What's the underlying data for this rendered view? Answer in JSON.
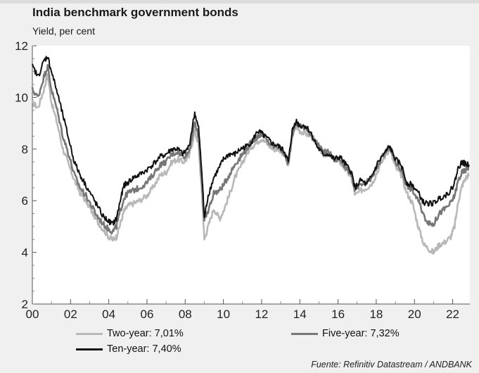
{
  "title": "India benchmark government bonds",
  "subtitle": "Yield, per cent",
  "source": "Fuente: Refinitiv Datastream / ANDBANK",
  "legend": {
    "two": "Two-year: 7,01%",
    "five": "Five-year: 7,32%",
    "ten": "Ten-year: 7,40%"
  },
  "chart_data": {
    "type": "line",
    "title": "India benchmark government bonds",
    "ylabel": "Yield, per cent",
    "xlabel": "",
    "xlim": [
      2000,
      2022.9
    ],
    "ylim": [
      2,
      12
    ],
    "yticks": [
      2,
      4,
      6,
      8,
      10,
      12
    ],
    "xticks": [
      "00",
      "02",
      "04",
      "06",
      "08",
      "10",
      "12",
      "14",
      "16",
      "18",
      "20",
      "22"
    ],
    "grid": false,
    "legend_position": "bottom",
    "series": [
      {
        "name": "Two-year: 7,01%",
        "color": "#b8b8b8",
        "points": [
          [
            2000.0,
            9.8
          ],
          [
            2000.3,
            9.6
          ],
          [
            2000.6,
            10.3
          ],
          [
            2000.8,
            10.9
          ],
          [
            2001.0,
            9.8
          ],
          [
            2001.3,
            9.0
          ],
          [
            2001.6,
            8.0
          ],
          [
            2001.9,
            7.4
          ],
          [
            2002.2,
            6.8
          ],
          [
            2002.5,
            6.3
          ],
          [
            2002.8,
            6.0
          ],
          [
            2003.1,
            5.6
          ],
          [
            2003.4,
            5.2
          ],
          [
            2003.7,
            4.9
          ],
          [
            2004.0,
            4.6
          ],
          [
            2004.2,
            4.5
          ],
          [
            2004.4,
            4.6
          ],
          [
            2004.6,
            5.1
          ],
          [
            2004.8,
            5.6
          ],
          [
            2005.0,
            5.8
          ],
          [
            2005.3,
            5.9
          ],
          [
            2005.6,
            6.0
          ],
          [
            2006.0,
            6.2
          ],
          [
            2006.3,
            6.5
          ],
          [
            2006.7,
            7.0
          ],
          [
            2007.0,
            7.1
          ],
          [
            2007.3,
            7.5
          ],
          [
            2007.6,
            7.6
          ],
          [
            2007.9,
            7.5
          ],
          [
            2008.2,
            7.7
          ],
          [
            2008.5,
            8.7
          ],
          [
            2008.7,
            8.2
          ],
          [
            2008.9,
            6.0
          ],
          [
            2009.0,
            4.5
          ],
          [
            2009.2,
            5.0
          ],
          [
            2009.5,
            5.7
          ],
          [
            2009.8,
            5.3
          ],
          [
            2010.0,
            5.6
          ],
          [
            2010.3,
            6.2
          ],
          [
            2010.6,
            6.9
          ],
          [
            2010.9,
            7.3
          ],
          [
            2011.2,
            7.8
          ],
          [
            2011.5,
            8.1
          ],
          [
            2011.8,
            8.3
          ],
          [
            2012.0,
            8.4
          ],
          [
            2012.3,
            8.2
          ],
          [
            2012.6,
            8.0
          ],
          [
            2012.9,
            8.0
          ],
          [
            2013.2,
            7.8
          ],
          [
            2013.4,
            7.3
          ],
          [
            2013.6,
            8.5
          ],
          [
            2013.8,
            8.9
          ],
          [
            2014.0,
            8.7
          ],
          [
            2014.3,
            8.6
          ],
          [
            2014.6,
            8.5
          ],
          [
            2014.9,
            8.2
          ],
          [
            2015.2,
            7.8
          ],
          [
            2015.5,
            7.8
          ],
          [
            2015.8,
            7.6
          ],
          [
            2016.1,
            7.5
          ],
          [
            2016.4,
            7.2
          ],
          [
            2016.7,
            6.9
          ],
          [
            2016.9,
            6.2
          ],
          [
            2017.2,
            6.4
          ],
          [
            2017.5,
            6.5
          ],
          [
            2017.8,
            6.7
          ],
          [
            2018.1,
            7.2
          ],
          [
            2018.5,
            7.8
          ],
          [
            2018.7,
            8.0
          ],
          [
            2019.0,
            7.3
          ],
          [
            2019.3,
            7.0
          ],
          [
            2019.6,
            6.3
          ],
          [
            2019.9,
            5.9
          ],
          [
            2020.2,
            5.0
          ],
          [
            2020.5,
            4.3
          ],
          [
            2020.8,
            4.1
          ],
          [
            2021.0,
            4.0
          ],
          [
            2021.3,
            4.3
          ],
          [
            2021.6,
            4.4
          ],
          [
            2021.9,
            4.6
          ],
          [
            2022.1,
            5.0
          ],
          [
            2022.3,
            6.0
          ],
          [
            2022.5,
            6.6
          ],
          [
            2022.7,
            6.9
          ],
          [
            2022.85,
            7.01
          ]
        ]
      },
      {
        "name": "Five-year: 7,32%",
        "color": "#777777",
        "points": [
          [
            2000.0,
            10.3
          ],
          [
            2000.3,
            10.0
          ],
          [
            2000.6,
            10.8
          ],
          [
            2000.8,
            11.2
          ],
          [
            2001.0,
            10.3
          ],
          [
            2001.3,
            9.5
          ],
          [
            2001.6,
            8.5
          ],
          [
            2001.9,
            7.8
          ],
          [
            2002.2,
            7.0
          ],
          [
            2002.5,
            6.5
          ],
          [
            2002.8,
            6.2
          ],
          [
            2003.1,
            5.8
          ],
          [
            2003.4,
            5.4
          ],
          [
            2003.7,
            5.1
          ],
          [
            2004.0,
            4.9
          ],
          [
            2004.2,
            4.8
          ],
          [
            2004.4,
            5.0
          ],
          [
            2004.6,
            5.6
          ],
          [
            2004.8,
            6.1
          ],
          [
            2005.0,
            6.3
          ],
          [
            2005.3,
            6.4
          ],
          [
            2005.6,
            6.5
          ],
          [
            2006.0,
            6.7
          ],
          [
            2006.3,
            7.0
          ],
          [
            2006.7,
            7.4
          ],
          [
            2007.0,
            7.5
          ],
          [
            2007.3,
            7.8
          ],
          [
            2007.6,
            7.9
          ],
          [
            2007.9,
            7.7
          ],
          [
            2008.2,
            7.9
          ],
          [
            2008.5,
            9.0
          ],
          [
            2008.7,
            8.5
          ],
          [
            2008.9,
            6.4
          ],
          [
            2009.0,
            5.2
          ],
          [
            2009.2,
            5.6
          ],
          [
            2009.5,
            6.3
          ],
          [
            2009.8,
            6.4
          ],
          [
            2010.0,
            6.6
          ],
          [
            2010.3,
            7.0
          ],
          [
            2010.6,
            7.4
          ],
          [
            2010.9,
            7.7
          ],
          [
            2011.2,
            8.0
          ],
          [
            2011.5,
            8.3
          ],
          [
            2011.8,
            8.5
          ],
          [
            2012.0,
            8.6
          ],
          [
            2012.3,
            8.3
          ],
          [
            2012.6,
            8.1
          ],
          [
            2012.9,
            8.1
          ],
          [
            2013.2,
            7.8
          ],
          [
            2013.4,
            7.4
          ],
          [
            2013.6,
            8.6
          ],
          [
            2013.8,
            9.0
          ],
          [
            2014.0,
            8.9
          ],
          [
            2014.3,
            8.8
          ],
          [
            2014.6,
            8.6
          ],
          [
            2014.9,
            8.2
          ],
          [
            2015.2,
            7.9
          ],
          [
            2015.5,
            7.9
          ],
          [
            2015.8,
            7.6
          ],
          [
            2016.1,
            7.6
          ],
          [
            2016.4,
            7.3
          ],
          [
            2016.7,
            7.0
          ],
          [
            2016.9,
            6.4
          ],
          [
            2017.2,
            6.6
          ],
          [
            2017.5,
            6.7
          ],
          [
            2017.8,
            6.9
          ],
          [
            2018.1,
            7.4
          ],
          [
            2018.5,
            7.9
          ],
          [
            2018.7,
            8.1
          ],
          [
            2019.0,
            7.5
          ],
          [
            2019.3,
            7.2
          ],
          [
            2019.6,
            6.6
          ],
          [
            2019.9,
            6.4
          ],
          [
            2020.2,
            6.0
          ],
          [
            2020.5,
            5.4
          ],
          [
            2020.8,
            5.1
          ],
          [
            2021.0,
            5.1
          ],
          [
            2021.3,
            5.5
          ],
          [
            2021.6,
            5.7
          ],
          [
            2021.9,
            5.9
          ],
          [
            2022.1,
            6.2
          ],
          [
            2022.3,
            6.8
          ],
          [
            2022.5,
            7.1
          ],
          [
            2022.7,
            7.2
          ],
          [
            2022.85,
            7.32
          ]
        ]
      },
      {
        "name": "Ten-year: 7,40%",
        "color": "#111111",
        "points": [
          [
            2000.0,
            11.2
          ],
          [
            2000.3,
            10.8
          ],
          [
            2000.6,
            11.4
          ],
          [
            2000.8,
            11.6
          ],
          [
            2001.0,
            11.0
          ],
          [
            2001.3,
            10.2
          ],
          [
            2001.6,
            9.3
          ],
          [
            2001.9,
            8.4
          ],
          [
            2002.2,
            7.5
          ],
          [
            2002.5,
            7.0
          ],
          [
            2002.8,
            6.6
          ],
          [
            2003.1,
            6.2
          ],
          [
            2003.4,
            5.8
          ],
          [
            2003.7,
            5.4
          ],
          [
            2004.0,
            5.2
          ],
          [
            2004.2,
            5.1
          ],
          [
            2004.4,
            5.3
          ],
          [
            2004.6,
            6.0
          ],
          [
            2004.8,
            6.6
          ],
          [
            2005.0,
            6.7
          ],
          [
            2005.3,
            6.9
          ],
          [
            2005.6,
            7.0
          ],
          [
            2006.0,
            7.2
          ],
          [
            2006.3,
            7.4
          ],
          [
            2006.7,
            7.7
          ],
          [
            2007.0,
            7.8
          ],
          [
            2007.3,
            8.0
          ],
          [
            2007.6,
            8.0
          ],
          [
            2007.9,
            7.8
          ],
          [
            2008.2,
            8.1
          ],
          [
            2008.5,
            9.4
          ],
          [
            2008.7,
            8.8
          ],
          [
            2008.9,
            6.8
          ],
          [
            2009.0,
            5.3
          ],
          [
            2009.2,
            6.2
          ],
          [
            2009.5,
            6.9
          ],
          [
            2009.8,
            7.3
          ],
          [
            2010.0,
            7.6
          ],
          [
            2010.3,
            7.8
          ],
          [
            2010.6,
            7.8
          ],
          [
            2010.9,
            8.0
          ],
          [
            2011.2,
            8.1
          ],
          [
            2011.5,
            8.3
          ],
          [
            2011.8,
            8.7
          ],
          [
            2012.0,
            8.6
          ],
          [
            2012.3,
            8.4
          ],
          [
            2012.6,
            8.2
          ],
          [
            2012.9,
            8.1
          ],
          [
            2013.2,
            7.9
          ],
          [
            2013.4,
            7.5
          ],
          [
            2013.6,
            8.7
          ],
          [
            2013.8,
            9.1
          ],
          [
            2014.0,
            8.9
          ],
          [
            2014.3,
            8.9
          ],
          [
            2014.6,
            8.6
          ],
          [
            2014.9,
            8.1
          ],
          [
            2015.2,
            7.8
          ],
          [
            2015.5,
            7.8
          ],
          [
            2015.8,
            7.6
          ],
          [
            2016.1,
            7.7
          ],
          [
            2016.4,
            7.4
          ],
          [
            2016.7,
            7.1
          ],
          [
            2016.9,
            6.5
          ],
          [
            2017.2,
            6.8
          ],
          [
            2017.5,
            6.6
          ],
          [
            2017.8,
            7.0
          ],
          [
            2018.1,
            7.5
          ],
          [
            2018.5,
            7.9
          ],
          [
            2018.7,
            8.1
          ],
          [
            2019.0,
            7.6
          ],
          [
            2019.3,
            7.4
          ],
          [
            2019.6,
            6.7
          ],
          [
            2019.9,
            6.6
          ],
          [
            2020.2,
            6.3
          ],
          [
            2020.5,
            5.9
          ],
          [
            2020.8,
            5.9
          ],
          [
            2021.0,
            5.9
          ],
          [
            2021.3,
            6.1
          ],
          [
            2021.6,
            6.2
          ],
          [
            2021.9,
            6.4
          ],
          [
            2022.1,
            6.7
          ],
          [
            2022.3,
            7.3
          ],
          [
            2022.5,
            7.5
          ],
          [
            2022.7,
            7.4
          ],
          [
            2022.85,
            7.4
          ]
        ]
      }
    ]
  }
}
